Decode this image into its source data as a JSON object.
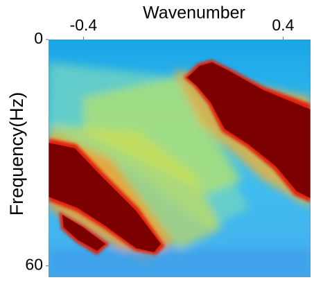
{
  "chart_data": {
    "type": "image",
    "xlabel": "Wavenumber",
    "ylabel": "Frequency(Hz)",
    "xlim": [
      -0.54,
      0.51
    ],
    "xticks": [
      -0.4,
      0.4
    ],
    "ylim": [
      0,
      63
    ],
    "yticks": [
      0,
      60
    ]
  }
}
